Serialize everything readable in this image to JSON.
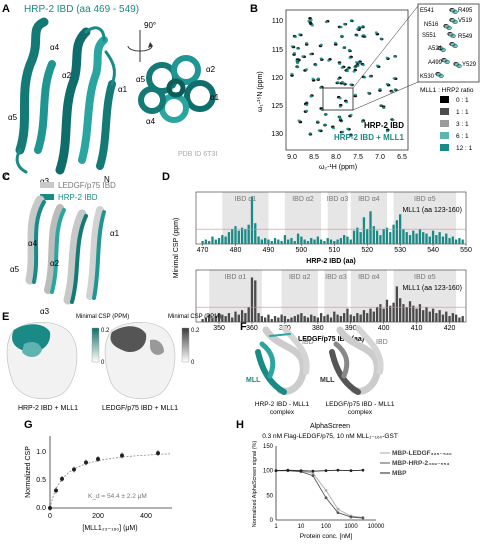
{
  "panels": {
    "A": {
      "letter": "A",
      "title": "HRP-2 IBD (aa 469 - 549)",
      "rotation": "90°",
      "helices_left": [
        "α1",
        "α2",
        "α3",
        "α4",
        "α5"
      ],
      "termini": [
        "C",
        "N"
      ],
      "helices_right": [
        "α1",
        "α2",
        "α3",
        "α4",
        "α5"
      ],
      "pdb": "PDB ID 6T3I"
    },
    "B": {
      "letter": "B",
      "y_ticks": [
        "110",
        "115",
        "120",
        "125",
        "130"
      ],
      "x_ticks": [
        "9.0",
        "8.5",
        "8.0",
        "7.5",
        "7.0",
        "6.5"
      ],
      "ylabel": "ω₁-¹⁵N (ppm)",
      "xlabel": "ω₂-¹H (ppm)",
      "legend1": "HRP-2 IBD",
      "legend2": "HRP-2 IBD + MLL1",
      "zoom_labels": [
        "E541",
        "R495",
        "N516",
        "V519",
        "S551",
        "R549",
        "A521",
        "A499",
        "Y529",
        "K530"
      ],
      "ratio_title": "MLL1 : HRP2 ratio",
      "ratios": [
        "0 : 1",
        "1 : 1",
        "3 : 1",
        "6 : 1",
        "12 : 1"
      ],
      "ratio_colors": [
        "#000000",
        "#4d4d4d",
        "#9a9a9a",
        "#5fb3b0",
        "#1a8a86"
      ]
    },
    "C": {
      "letter": "C",
      "legend1": "LEDGF/p75 IBD",
      "legend2": "HRP-2 IBD",
      "helices": [
        "α4",
        "α2",
        "α1",
        "α5",
        "α3"
      ]
    },
    "D": {
      "letter": "D",
      "ylabel": "Minimal CSP (ppm)",
      "top_segments": [
        "IBD α1",
        "IBD α2",
        "IBD α3",
        "IBD α4",
        "IBD α5"
      ],
      "top_mll": "MLL1 (aa 123-160)",
      "top_ticks": [
        "470",
        "480",
        "490",
        "500",
        "510",
        "520",
        "530",
        "540",
        "550"
      ],
      "top_xlabel": "HRP-2 IBD (aa)",
      "bottom_segments": [
        "IBD α1",
        "IBD α2",
        "IBD α3",
        "IBD α4",
        "IBD α5"
      ],
      "bottom_mll": "MLL1 (aa 123-160)",
      "bottom_ticks": [
        "350",
        "360",
        "370",
        "380",
        "390",
        "400",
        "410",
        "420"
      ],
      "bottom_xlabel": "LEDGF/p75 IBD (aa)"
    },
    "E": {
      "letter": "E",
      "scale_title": "Minimal CSP (PPM)",
      "scale_top": "0.2",
      "scale_bottom": "0",
      "caption1": "HRP-2 IBD  + MLL1",
      "caption2": "LEDGF/p75 IBD + MLL1"
    },
    "F": {
      "letter": "F",
      "ibd": "IBD",
      "mll": "MLL",
      "caption1_line1": "HRP-2 IBD - MLL1",
      "caption1_line2": "complex",
      "caption2_line1": "LEDGF/p75 IBD - MLL1",
      "caption2_line2": "complex"
    },
    "G": {
      "letter": "G",
      "ylabel": "Normalized CSP",
      "y_ticks": [
        "0.0",
        "0.5",
        "1.0"
      ],
      "x_ticks": [
        "0",
        "200",
        "400"
      ],
      "xlabel": "[MLL1₂₃₋₁₆₀] (μM)",
      "kd": "K_d = 54.4 ± 2.2 μM"
    },
    "H": {
      "letter": "H",
      "title": "AlphaScreen",
      "subtitle": "0.3 nM Flag-LEDGF/p75, 10 nM MLL₁₋₁₆₀-GST",
      "ylabel": "Normalized AlphaScreen signal (%)",
      "y_ticks": [
        "0",
        "50",
        "100",
        "150"
      ],
      "x_ticks": [
        "1",
        "10",
        "100",
        "1000",
        "10000"
      ],
      "xlabel": "Protein conc. [nM]",
      "legend": [
        "MBP-LEDGF₃₂₅₋₅₃₀",
        "MBP-HRP-2₄₆₉₋₅₅₃",
        "MBP"
      ]
    }
  },
  "chart_data": [
    {
      "type": "bar",
      "panel": "D-top",
      "x": [
        470,
        471,
        472,
        473,
        474,
        475,
        476,
        477,
        478,
        479,
        480,
        481,
        482,
        483,
        484,
        485,
        486,
        487,
        488,
        489,
        490,
        491,
        492,
        493,
        494,
        495,
        496,
        497,
        498,
        499,
        500,
        501,
        502,
        503,
        504,
        505,
        506,
        507,
        508,
        509,
        510,
        511,
        512,
        513,
        514,
        515,
        516,
        517,
        518,
        519,
        520,
        521,
        522,
        523,
        524,
        525,
        526,
        527,
        528,
        529,
        530,
        531,
        532,
        533,
        534,
        535,
        536,
        537,
        538,
        539,
        540,
        541,
        542,
        543,
        544,
        545,
        546,
        547,
        548,
        549
      ],
      "values": [
        0.02,
        0.03,
        0.02,
        0.05,
        0.03,
        0.04,
        0.06,
        0.05,
        0.08,
        0.1,
        0.12,
        0.09,
        0.11,
        0.1,
        0.13,
        0.32,
        0.14,
        0.05,
        0.03,
        0.04,
        0.03,
        0.02,
        0.04,
        0.03,
        0.02,
        0.06,
        0.03,
        0.04,
        0.02,
        0.07,
        0.05,
        0.03,
        0.02,
        0.04,
        0.03,
        0.05,
        0.03,
        0.02,
        0.04,
        0.03,
        0.02,
        0.03,
        0.04,
        0.06,
        0.05,
        0.03,
        0.09,
        0.11,
        0.08,
        0.18,
        0.1,
        0.22,
        0.12,
        0.09,
        0.06,
        0.1,
        0.11,
        0.08,
        0.13,
        0.16,
        0.2,
        0.1,
        0.08,
        0.06,
        0.09,
        0.07,
        0.1,
        0.08,
        0.07,
        0.05,
        0.09,
        0.06,
        0.08,
        0.05,
        0.07,
        0.04,
        0.05,
        0.03,
        0.04,
        0.03
      ],
      "xlabel": "HRP-2 IBD (aa)",
      "ylabel": "Minimal CSP (ppm)",
      "xlim": [
        468,
        550
      ],
      "ylim": [
        0,
        0.35
      ]
    },
    {
      "type": "bar",
      "panel": "D-bottom",
      "x": [
        345,
        346,
        347,
        348,
        349,
        350,
        351,
        352,
        353,
        354,
        355,
        356,
        357,
        358,
        359,
        360,
        361,
        362,
        363,
        364,
        365,
        366,
        367,
        368,
        369,
        370,
        371,
        372,
        373,
        374,
        375,
        376,
        377,
        378,
        379,
        380,
        381,
        382,
        383,
        384,
        385,
        386,
        387,
        388,
        389,
        390,
        391,
        392,
        393,
        394,
        395,
        396,
        397,
        398,
        399,
        400,
        401,
        402,
        403,
        404,
        405,
        406,
        407,
        408,
        409,
        410,
        411,
        412,
        413,
        414,
        415,
        416,
        417,
        418,
        419,
        420,
        421,
        422,
        423,
        424
      ],
      "values": [
        0.02,
        0.03,
        0.05,
        0.03,
        0.04,
        0.06,
        0.05,
        0.04,
        0.06,
        0.03,
        0.07,
        0.05,
        0.08,
        0.06,
        0.1,
        0.3,
        0.28,
        0.06,
        0.04,
        0.03,
        0.05,
        0.02,
        0.04,
        0.03,
        0.05,
        0.04,
        0.02,
        0.03,
        0.04,
        0.05,
        0.06,
        0.04,
        0.03,
        0.05,
        0.04,
        0.03,
        0.06,
        0.04,
        0.05,
        0.03,
        0.07,
        0.05,
        0.04,
        0.06,
        0.09,
        0.05,
        0.04,
        0.06,
        0.05,
        0.08,
        0.06,
        0.09,
        0.07,
        0.1,
        0.12,
        0.09,
        0.15,
        0.11,
        0.13,
        0.24,
        0.16,
        0.12,
        0.1,
        0.14,
        0.11,
        0.09,
        0.12,
        0.08,
        0.1,
        0.07,
        0.09,
        0.06,
        0.08,
        0.05,
        0.07,
        0.04,
        0.06,
        0.05,
        0.03,
        0.04
      ],
      "xlabel": "LEDGF/p75 IBD (aa)",
      "ylabel": "Minimal CSP (ppm)",
      "xlim": [
        343,
        425
      ],
      "ylim": [
        0,
        0.35
      ]
    },
    {
      "type": "scatter",
      "panel": "G",
      "x": [
        0,
        25,
        50,
        100,
        150,
        200,
        300,
        450
      ],
      "y": [
        0.0,
        0.3,
        0.5,
        0.66,
        0.78,
        0.84,
        0.9,
        0.94
      ],
      "xlabel": "[MLL1₂₃₋₁₆₀] (μM)",
      "ylabel": "Normalized CSP",
      "xlim": [
        0,
        500
      ],
      "ylim": [
        0,
        1.2
      ]
    },
    {
      "type": "line",
      "panel": "H",
      "log_x": true,
      "x": [
        1,
        3,
        10,
        30,
        100,
        300,
        1000,
        3000
      ],
      "series": [
        {
          "name": "MBP-LEDGF₃₂₅₋₅₃₀",
          "values": [
            100,
            100,
            99,
            95,
            60,
            22,
            8,
            5
          ]
        },
        {
          "name": "MBP-HRP-2₄₆₉₋₅₅₃",
          "values": [
            100,
            100,
            98,
            90,
            45,
            15,
            6,
            4
          ]
        },
        {
          "name": "MBP",
          "values": [
            100,
            101,
            100,
            99,
            100,
            101,
            100,
            101
          ]
        }
      ],
      "xlabel": "Protein conc. [nM]",
      "ylabel": "Normalized AlphaScreen signal (%)",
      "xlim": [
        1,
        10000
      ],
      "ylim": [
        0,
        150
      ]
    }
  ]
}
